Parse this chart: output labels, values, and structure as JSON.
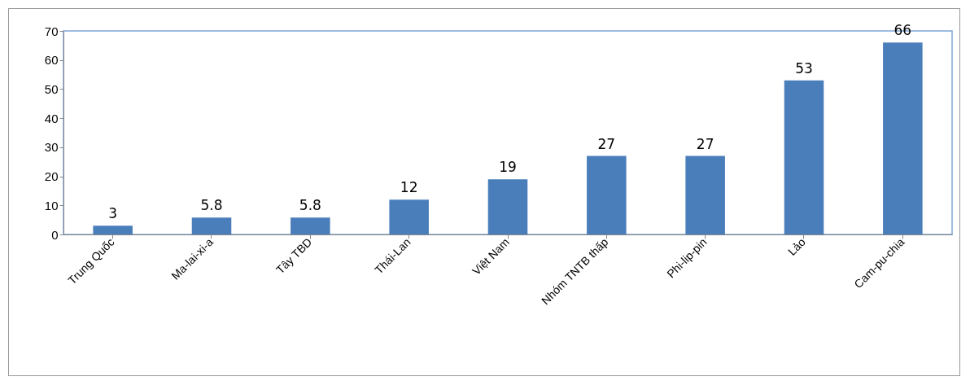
{
  "chart_data": {
    "type": "bar",
    "categories": [
      "Trung Quốc",
      "Ma-lai-xi-a",
      "Tây TBD",
      "Thái-Lan",
      "Việt Nam",
      "Nhóm TNTB thấp",
      "Phi-lip-pin",
      "Lảo",
      "Cam-pu-chia"
    ],
    "values": [
      3,
      5.8,
      5.8,
      12,
      19,
      27,
      27,
      53,
      66
    ],
    "color": "#4a7ebb",
    "ylim": [
      0,
      70
    ],
    "yticks": [
      0,
      10,
      20,
      30,
      40,
      50,
      60,
      70
    ],
    "grid": false,
    "data_labels": true
  }
}
